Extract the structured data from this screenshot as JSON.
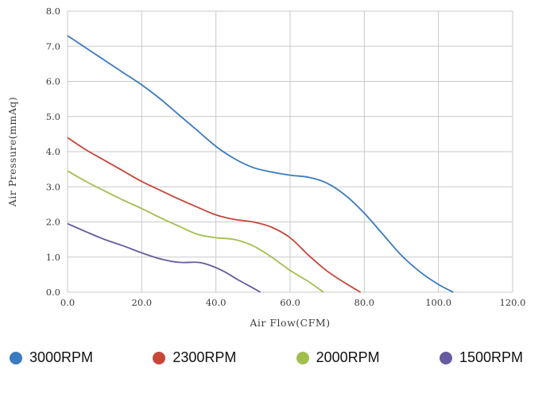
{
  "chart_data": {
    "type": "line",
    "title": "",
    "xlabel": "Air Flow(CFM)",
    "ylabel": "Air Pressure(mmAq)",
    "xlim": [
      0,
      120
    ],
    "ylim": [
      0,
      8
    ],
    "grid": true,
    "grid_color": "#c9c9c9",
    "legend_position": "bottom",
    "x_ticks": [
      0,
      20,
      40,
      60,
      80,
      100,
      120
    ],
    "x_tick_labels": [
      "0.0",
      "20.0",
      "40.0",
      "60.0",
      "80.0",
      "100.0",
      "120.0"
    ],
    "y_ticks": [
      0,
      1,
      2,
      3,
      4,
      5,
      6,
      7,
      8
    ],
    "y_tick_labels": [
      "0.0",
      "1.0",
      "2.0",
      "3.0",
      "4.0",
      "5.0",
      "6.0",
      "7.0",
      "8.0"
    ],
    "series": [
      {
        "name": "3000RPM",
        "color": "#3a7abf",
        "points": [
          [
            0,
            7.3
          ],
          [
            5,
            6.95
          ],
          [
            10,
            6.6
          ],
          [
            15,
            6.25
          ],
          [
            20,
            5.9
          ],
          [
            25,
            5.5
          ],
          [
            30,
            5.05
          ],
          [
            35,
            4.6
          ],
          [
            40,
            4.15
          ],
          [
            45,
            3.8
          ],
          [
            50,
            3.55
          ],
          [
            55,
            3.42
          ],
          [
            60,
            3.33
          ],
          [
            65,
            3.27
          ],
          [
            70,
            3.1
          ],
          [
            75,
            2.75
          ],
          [
            80,
            2.25
          ],
          [
            85,
            1.65
          ],
          [
            90,
            1.05
          ],
          [
            95,
            0.58
          ],
          [
            100,
            0.22
          ],
          [
            104,
            0
          ]
        ]
      },
      {
        "name": "2300RPM",
        "color": "#c7463a",
        "points": [
          [
            0,
            4.4
          ],
          [
            5,
            4.05
          ],
          [
            10,
            3.75
          ],
          [
            15,
            3.45
          ],
          [
            20,
            3.15
          ],
          [
            25,
            2.9
          ],
          [
            30,
            2.65
          ],
          [
            35,
            2.42
          ],
          [
            40,
            2.2
          ],
          [
            45,
            2.07
          ],
          [
            50,
            2.0
          ],
          [
            55,
            1.85
          ],
          [
            60,
            1.55
          ],
          [
            65,
            1.05
          ],
          [
            70,
            0.6
          ],
          [
            75,
            0.25
          ],
          [
            79,
            0
          ]
        ]
      },
      {
        "name": "2000RPM",
        "color": "#a2bf4e",
        "points": [
          [
            0,
            3.45
          ],
          [
            5,
            3.15
          ],
          [
            10,
            2.88
          ],
          [
            15,
            2.62
          ],
          [
            20,
            2.38
          ],
          [
            25,
            2.12
          ],
          [
            30,
            1.88
          ],
          [
            35,
            1.65
          ],
          [
            40,
            1.55
          ],
          [
            45,
            1.5
          ],
          [
            50,
            1.32
          ],
          [
            55,
            1.0
          ],
          [
            60,
            0.62
          ],
          [
            65,
            0.3
          ],
          [
            69,
            0
          ]
        ]
      },
      {
        "name": "1500RPM",
        "color": "#675a9e",
        "points": [
          [
            0,
            1.95
          ],
          [
            5,
            1.72
          ],
          [
            10,
            1.5
          ],
          [
            15,
            1.32
          ],
          [
            20,
            1.12
          ],
          [
            25,
            0.95
          ],
          [
            30,
            0.85
          ],
          [
            35,
            0.85
          ],
          [
            38,
            0.78
          ],
          [
            42,
            0.6
          ],
          [
            46,
            0.35
          ],
          [
            50,
            0.12
          ],
          [
            52,
            0
          ]
        ]
      }
    ]
  }
}
